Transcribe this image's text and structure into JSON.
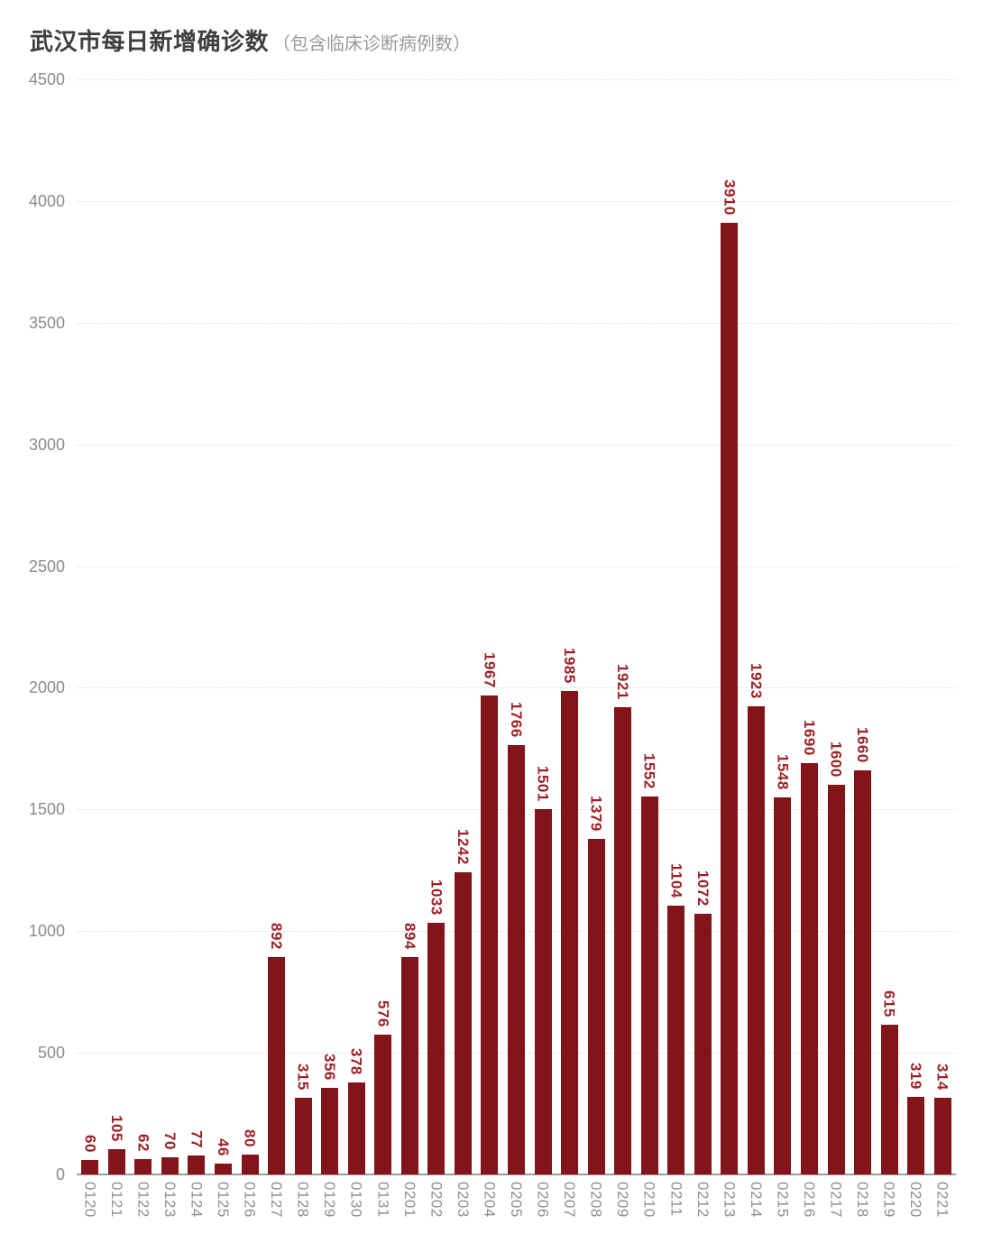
{
  "header": {
    "title": "武汉市每日新增确诊数",
    "subtitle": "（包含临床诊断病例数）"
  },
  "colors": {
    "bar": "#82141a",
    "value_label": "#9c2126",
    "title": "#3e3e3e",
    "subtitle": "#9a9a9a",
    "axis_label": "#8b8b8b",
    "gridline": "#e6e6e6",
    "axis_line": "#9b9b9b",
    "background": "#ffffff"
  },
  "chart_data": {
    "type": "bar",
    "title": "武汉市每日新增确诊数（包含临床诊断病例数）",
    "xlabel": "",
    "ylabel": "",
    "categories": [
      "0120",
      "0121",
      "0122",
      "0123",
      "0124",
      "0125",
      "0126",
      "0127",
      "0128",
      "0129",
      "0130",
      "0131",
      "0201",
      "0202",
      "0203",
      "0204",
      "0205",
      "0206",
      "0207",
      "0208",
      "0209",
      "0210",
      "0211",
      "0212",
      "0213",
      "0214",
      "0215",
      "0216",
      "0217",
      "0218",
      "0219",
      "0220",
      "0221"
    ],
    "values": [
      60,
      105,
      62,
      70,
      77,
      46,
      80,
      892,
      315,
      356,
      378,
      576,
      894,
      1033,
      1242,
      1967,
      1766,
      1501,
      1985,
      1379,
      1921,
      1552,
      1104,
      1072,
      3910,
      1923,
      1548,
      1690,
      1600,
      1660,
      615,
      319,
      314
    ],
    "ylim": [
      0,
      4500
    ],
    "yticks": [
      0,
      500,
      1000,
      1500,
      2000,
      2500,
      3000,
      3500,
      4000,
      4500
    ],
    "grid": "horizontal-dashed",
    "legend": "none",
    "bar_labels_rotated": true,
    "x_labels_rotated": true
  }
}
